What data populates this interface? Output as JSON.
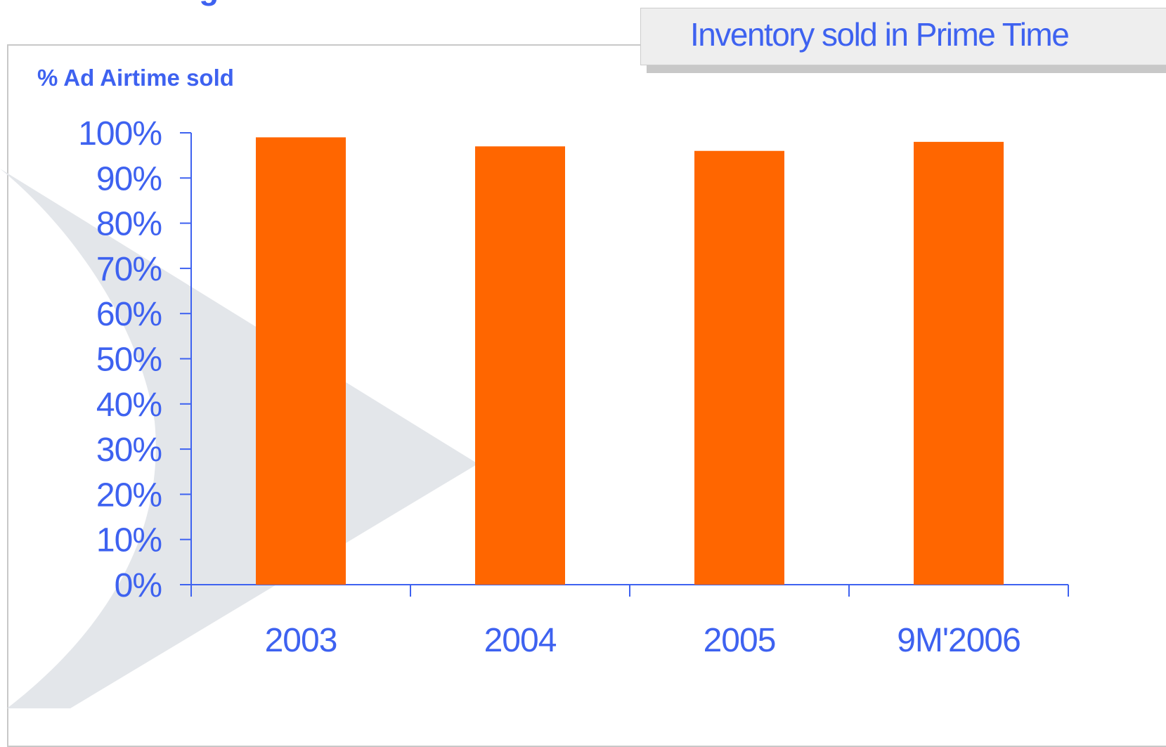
{
  "slide": {
    "title": "advertising airtime",
    "badge": "Inventory sold in Prime Time"
  },
  "colors": {
    "bar": "#ff6600",
    "axis": "#3e62f0",
    "text": "#3e62f0",
    "badge_bg": "#eeeeee",
    "chevron": "#e3e6ea"
  },
  "chart_data": {
    "type": "bar",
    "ylabel": "% Ad Airtime sold",
    "xlabel": "",
    "categories": [
      "2003",
      "2004",
      "2005",
      "9M'2006"
    ],
    "values": [
      99,
      97,
      96,
      98
    ],
    "ylim": [
      0,
      100
    ],
    "yticks": [
      "0%",
      "10%",
      "20%",
      "30%",
      "40%",
      "50%",
      "60%",
      "70%",
      "80%",
      "90%",
      "100%"
    ],
    "grid": false,
    "legend": "none"
  }
}
